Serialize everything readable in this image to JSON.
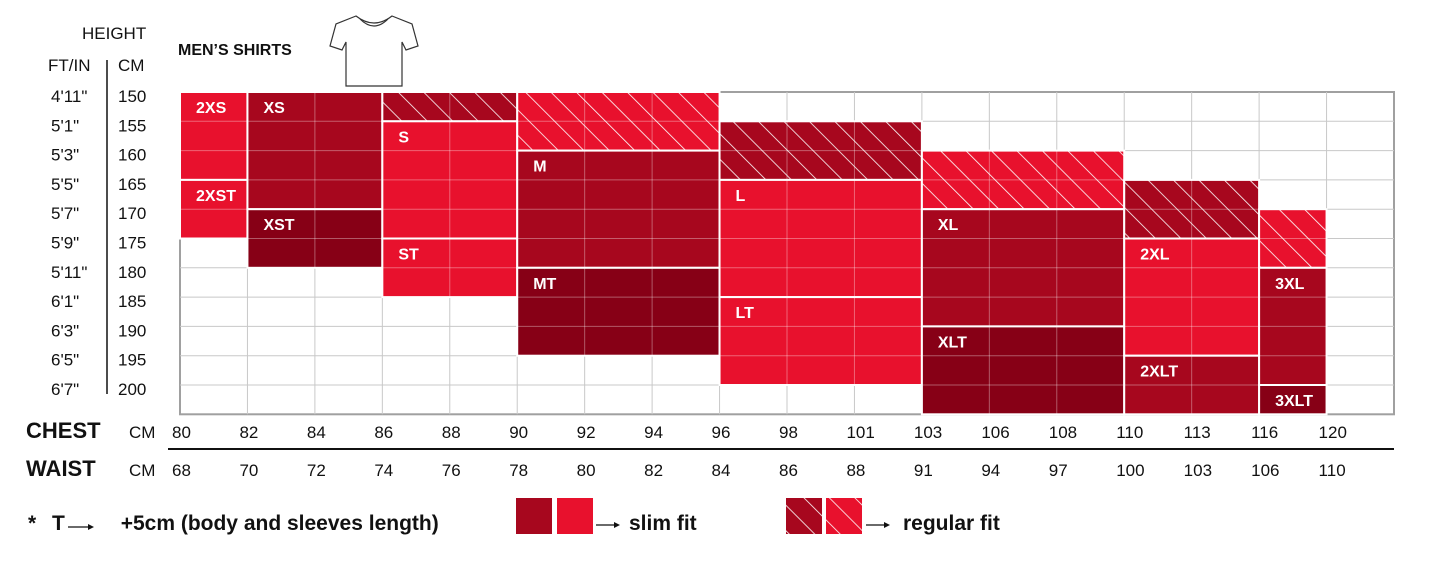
{
  "title": "MEN’S SHIRTS",
  "height_header": "HEIGHT",
  "ftin_header": "FT/IN",
  "cm_header": "CM",
  "chart_data": {
    "type": "table",
    "title": "MEN’S SHIRTS",
    "rows_ft": [
      "4'11\"",
      "5'1\"",
      "5'3\"",
      "5'5\"",
      "5'7\"",
      "5'9\"",
      "5'11\"",
      "6'1\"",
      "6'3\"",
      "6'5\"",
      "6'7\""
    ],
    "rows_cm": [
      "150",
      "155",
      "160",
      "165",
      "170",
      "175",
      "180",
      "185",
      "190",
      "195",
      "200"
    ],
    "chest": {
      "label": "CHEST",
      "unit": "CM",
      "values": [
        "80",
        "82",
        "84",
        "86",
        "88",
        "90",
        "92",
        "94",
        "96",
        "98",
        "101",
        "103",
        "106",
        "108",
        "110",
        "113",
        "116",
        "120"
      ]
    },
    "waist": {
      "label": "WAIST",
      "unit": "CM",
      "values": [
        "68",
        "70",
        "72",
        "74",
        "76",
        "78",
        "80",
        "82",
        "84",
        "86",
        "88",
        "91",
        "94",
        "97",
        "100",
        "103",
        "106",
        "110"
      ]
    },
    "colors": {
      "dark": "#a7071e",
      "bright": "#e8112d",
      "darkest": "#870016",
      "grid": "#c8c8c8"
    },
    "blocks": [
      {
        "label": "2XS",
        "chest": [
          "80",
          "82"
        ],
        "height_cm": [
          "150",
          "160"
        ],
        "fit": "slim",
        "shade": "bright"
      },
      {
        "label": "2XST",
        "chest": [
          "80",
          "82"
        ],
        "height_cm": [
          "165",
          "170"
        ],
        "fit": "slim",
        "shade": "bright"
      },
      {
        "label": "XS",
        "chest": [
          "82",
          "86"
        ],
        "height_cm": [
          "150",
          "165"
        ],
        "fit": "slim",
        "shade": "dark"
      },
      {
        "label": "XST",
        "chest": [
          "82",
          "86"
        ],
        "height_cm": [
          "170",
          "175"
        ],
        "fit": "slim",
        "shade": "darkest"
      },
      {
        "label": "",
        "chest": [
          "86",
          "90"
        ],
        "height_cm": [
          "150",
          "150"
        ],
        "fit": "regular",
        "shade": "dark"
      },
      {
        "label": "S",
        "chest": [
          "86",
          "90"
        ],
        "height_cm": [
          "155",
          "170"
        ],
        "fit": "slim",
        "shade": "bright"
      },
      {
        "label": "ST",
        "chest": [
          "86",
          "90"
        ],
        "height_cm": [
          "175",
          "180"
        ],
        "fit": "slim",
        "shade": "bright"
      },
      {
        "label": "",
        "chest": [
          "90",
          "96"
        ],
        "height_cm": [
          "150",
          "155"
        ],
        "fit": "regular",
        "shade": "bright"
      },
      {
        "label": "M",
        "chest": [
          "90",
          "96"
        ],
        "height_cm": [
          "160",
          "175"
        ],
        "fit": "slim",
        "shade": "dark"
      },
      {
        "label": "MT",
        "chest": [
          "90",
          "96"
        ],
        "height_cm": [
          "180",
          "190"
        ],
        "fit": "slim",
        "shade": "darkest"
      },
      {
        "label": "",
        "chest": [
          "96",
          "103"
        ],
        "height_cm": [
          "155",
          "160"
        ],
        "fit": "regular",
        "shade": "dark"
      },
      {
        "label": "L",
        "chest": [
          "96",
          "103"
        ],
        "height_cm": [
          "165",
          "180"
        ],
        "fit": "slim",
        "shade": "bright"
      },
      {
        "label": "LT",
        "chest": [
          "96",
          "103"
        ],
        "height_cm": [
          "185",
          "195"
        ],
        "fit": "slim",
        "shade": "bright"
      },
      {
        "label": "",
        "chest": [
          "103",
          "110"
        ],
        "height_cm": [
          "160",
          "165"
        ],
        "fit": "regular",
        "shade": "bright"
      },
      {
        "label": "XL",
        "chest": [
          "103",
          "110"
        ],
        "height_cm": [
          "170",
          "185"
        ],
        "fit": "slim",
        "shade": "dark"
      },
      {
        "label": "XLT",
        "chest": [
          "103",
          "110"
        ],
        "height_cm": [
          "190",
          "200"
        ],
        "fit": "slim",
        "shade": "darkest"
      },
      {
        "label": "",
        "chest": [
          "110",
          "116"
        ],
        "height_cm": [
          "165",
          "170"
        ],
        "fit": "regular",
        "shade": "dark"
      },
      {
        "label": "2XL",
        "chest": [
          "110",
          "116"
        ],
        "height_cm": [
          "175",
          "190"
        ],
        "fit": "slim",
        "shade": "bright"
      },
      {
        "label": "2XLT",
        "chest": [
          "110",
          "116"
        ],
        "height_cm": [
          "195",
          "200"
        ],
        "fit": "slim",
        "shade": "dark"
      },
      {
        "label": "",
        "chest": [
          "116",
          "120"
        ],
        "height_cm": [
          "170",
          "175"
        ],
        "fit": "regular",
        "shade": "bright"
      },
      {
        "label": "3XL",
        "chest": [
          "116",
          "120"
        ],
        "height_cm": [
          "180",
          "195"
        ],
        "fit": "slim",
        "shade": "dark"
      },
      {
        "label": "3XLT",
        "chest": [
          "116",
          "120"
        ],
        "height_cm": [
          "200",
          "200"
        ],
        "fit": "slim",
        "shade": "darkest"
      }
    ]
  },
  "footnote": {
    "star": "*",
    "t": "T",
    "text": "+5cm (body and sleeves length)"
  },
  "legend": {
    "slim": "slim fit",
    "regular": "regular fit"
  }
}
